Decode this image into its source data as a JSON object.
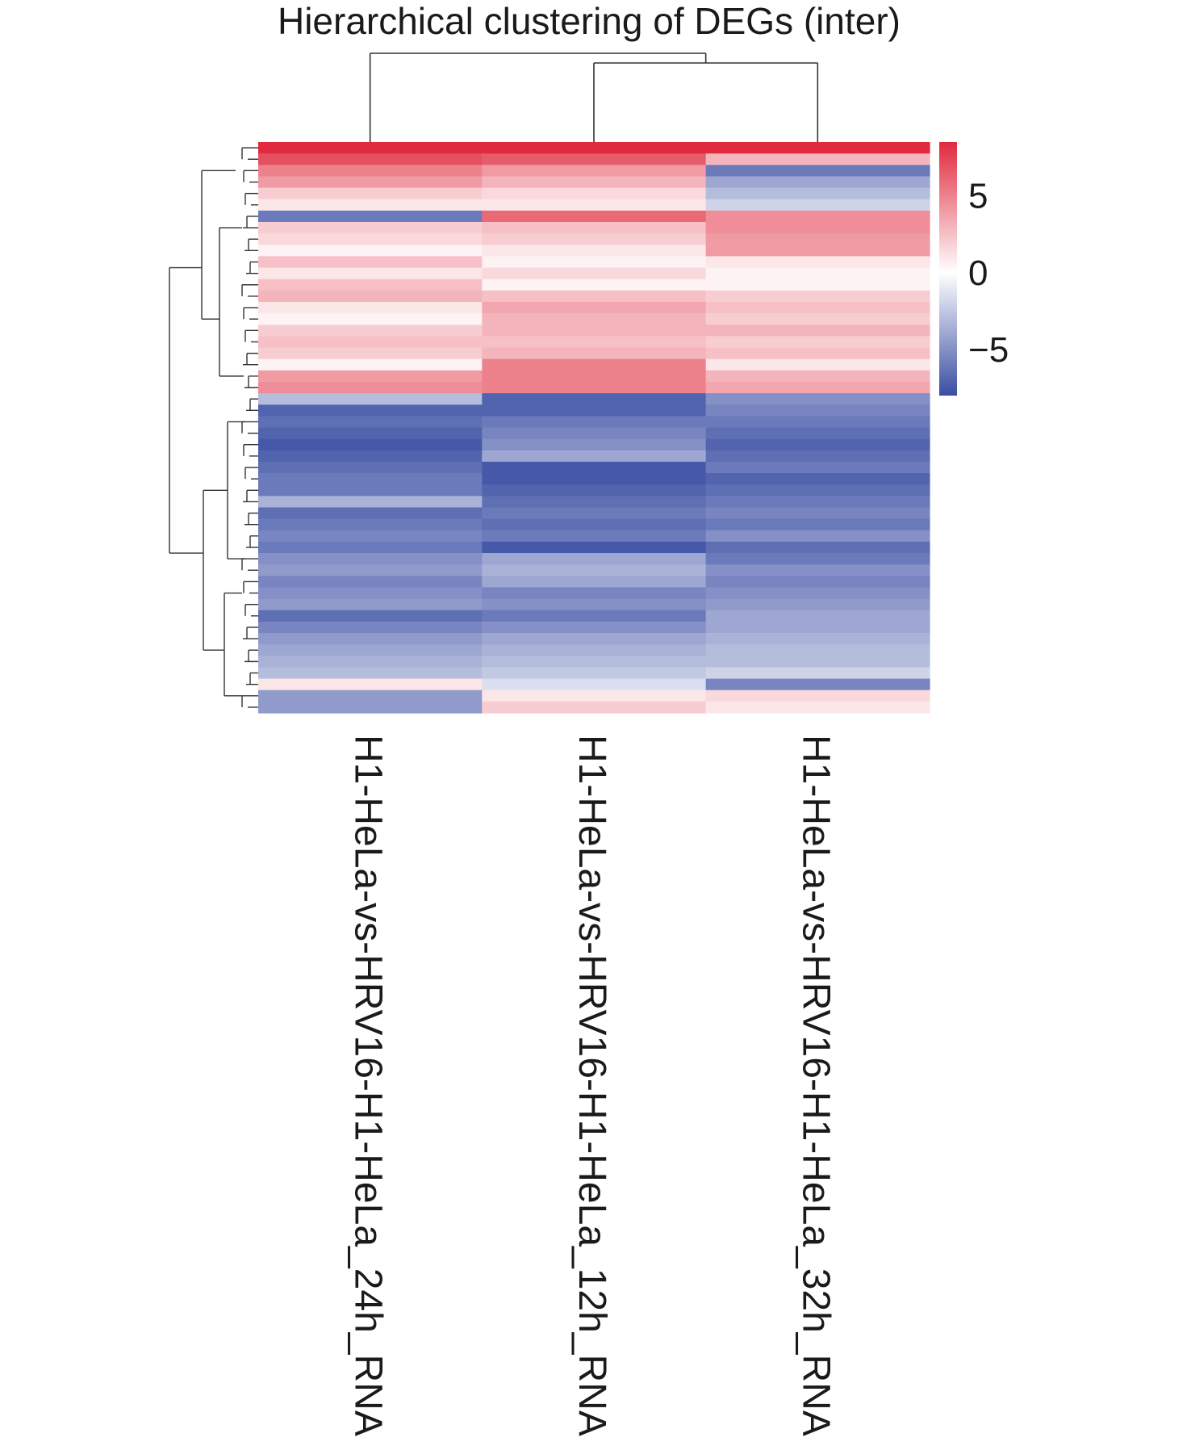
{
  "chart_data": {
    "type": "heatmap",
    "title": "Hierarchical clustering of DEGs (inter)",
    "columns": [
      "H1-HeLa-vs-HRV16-H1-HeLa_24h_RNA",
      "H1-HeLa-vs-HRV16-H1-HeLa_12h_RNA",
      "H1-HeLa-vs-HRV16-H1-HeLa_32h_RNA"
    ],
    "color_scale": {
      "min": -8,
      "max": 8.5,
      "ticks": [
        5,
        0,
        -5
      ],
      "tick_labels": [
        "5",
        "0",
        "−5"
      ],
      "colors": {
        "low": "#3a4ea3",
        "mid": "#ffffff",
        "high": "#e02a3e"
      }
    },
    "dendrogram": {
      "columns": true,
      "rows": true
    },
    "rows": [
      [
        8.5,
        8.5,
        8.5
      ],
      [
        7.0,
        6.5,
        3.0
      ],
      [
        5.0,
        4.0,
        -6.0
      ],
      [
        4.0,
        3.0,
        -4.0
      ],
      [
        2.0,
        1.5,
        -3.0
      ],
      [
        1.0,
        1.0,
        -2.0
      ],
      [
        -6.0,
        6.0,
        4.5
      ],
      [
        2.0,
        2.5,
        4.5
      ],
      [
        1.5,
        2.0,
        4.0
      ],
      [
        0.5,
        1.0,
        4.0
      ],
      [
        2.5,
        0.5,
        1.0
      ],
      [
        1.0,
        1.5,
        0.5
      ],
      [
        2.5,
        0.5,
        0.5
      ],
      [
        3.0,
        2.5,
        2.0
      ],
      [
        1.0,
        3.5,
        2.5
      ],
      [
        0.5,
        3.0,
        2.0
      ],
      [
        2.0,
        3.0,
        3.0
      ],
      [
        2.5,
        2.5,
        2.0
      ],
      [
        2.0,
        3.0,
        2.5
      ],
      [
        0.5,
        5.0,
        1.0
      ],
      [
        4.0,
        5.0,
        3.0
      ],
      [
        4.5,
        5.0,
        3.5
      ],
      [
        -3.0,
        -7.0,
        -5.0
      ],
      [
        -7.0,
        -7.0,
        -5.5
      ],
      [
        -6.5,
        -6.0,
        -6.0
      ],
      [
        -7.0,
        -5.5,
        -6.5
      ],
      [
        -7.5,
        -5.0,
        -7.0
      ],
      [
        -7.0,
        -4.0,
        -6.5
      ],
      [
        -6.5,
        -7.5,
        -6.0
      ],
      [
        -6.0,
        -7.5,
        -7.0
      ],
      [
        -6.0,
        -7.0,
        -6.5
      ],
      [
        -3.5,
        -6.5,
        -6.0
      ],
      [
        -6.5,
        -6.0,
        -5.5
      ],
      [
        -6.0,
        -6.5,
        -6.0
      ],
      [
        -5.5,
        -6.0,
        -5.0
      ],
      [
        -6.0,
        -7.5,
        -6.5
      ],
      [
        -5.0,
        -4.0,
        -6.0
      ],
      [
        -4.5,
        -3.5,
        -5.0
      ],
      [
        -5.5,
        -4.0,
        -5.5
      ],
      [
        -5.0,
        -5.5,
        -5.0
      ],
      [
        -4.5,
        -5.0,
        -4.5
      ],
      [
        -6.5,
        -6.0,
        -4.0
      ],
      [
        -5.5,
        -5.0,
        -4.0
      ],
      [
        -4.5,
        -4.0,
        -3.5
      ],
      [
        -4.0,
        -3.5,
        -3.0
      ],
      [
        -3.5,
        -3.0,
        -3.0
      ],
      [
        -3.0,
        -2.5,
        -2.0
      ],
      [
        1.0,
        -1.5,
        -5.5
      ],
      [
        -4.5,
        1.0,
        1.5
      ],
      [
        -4.5,
        2.0,
        1.0
      ]
    ]
  }
}
